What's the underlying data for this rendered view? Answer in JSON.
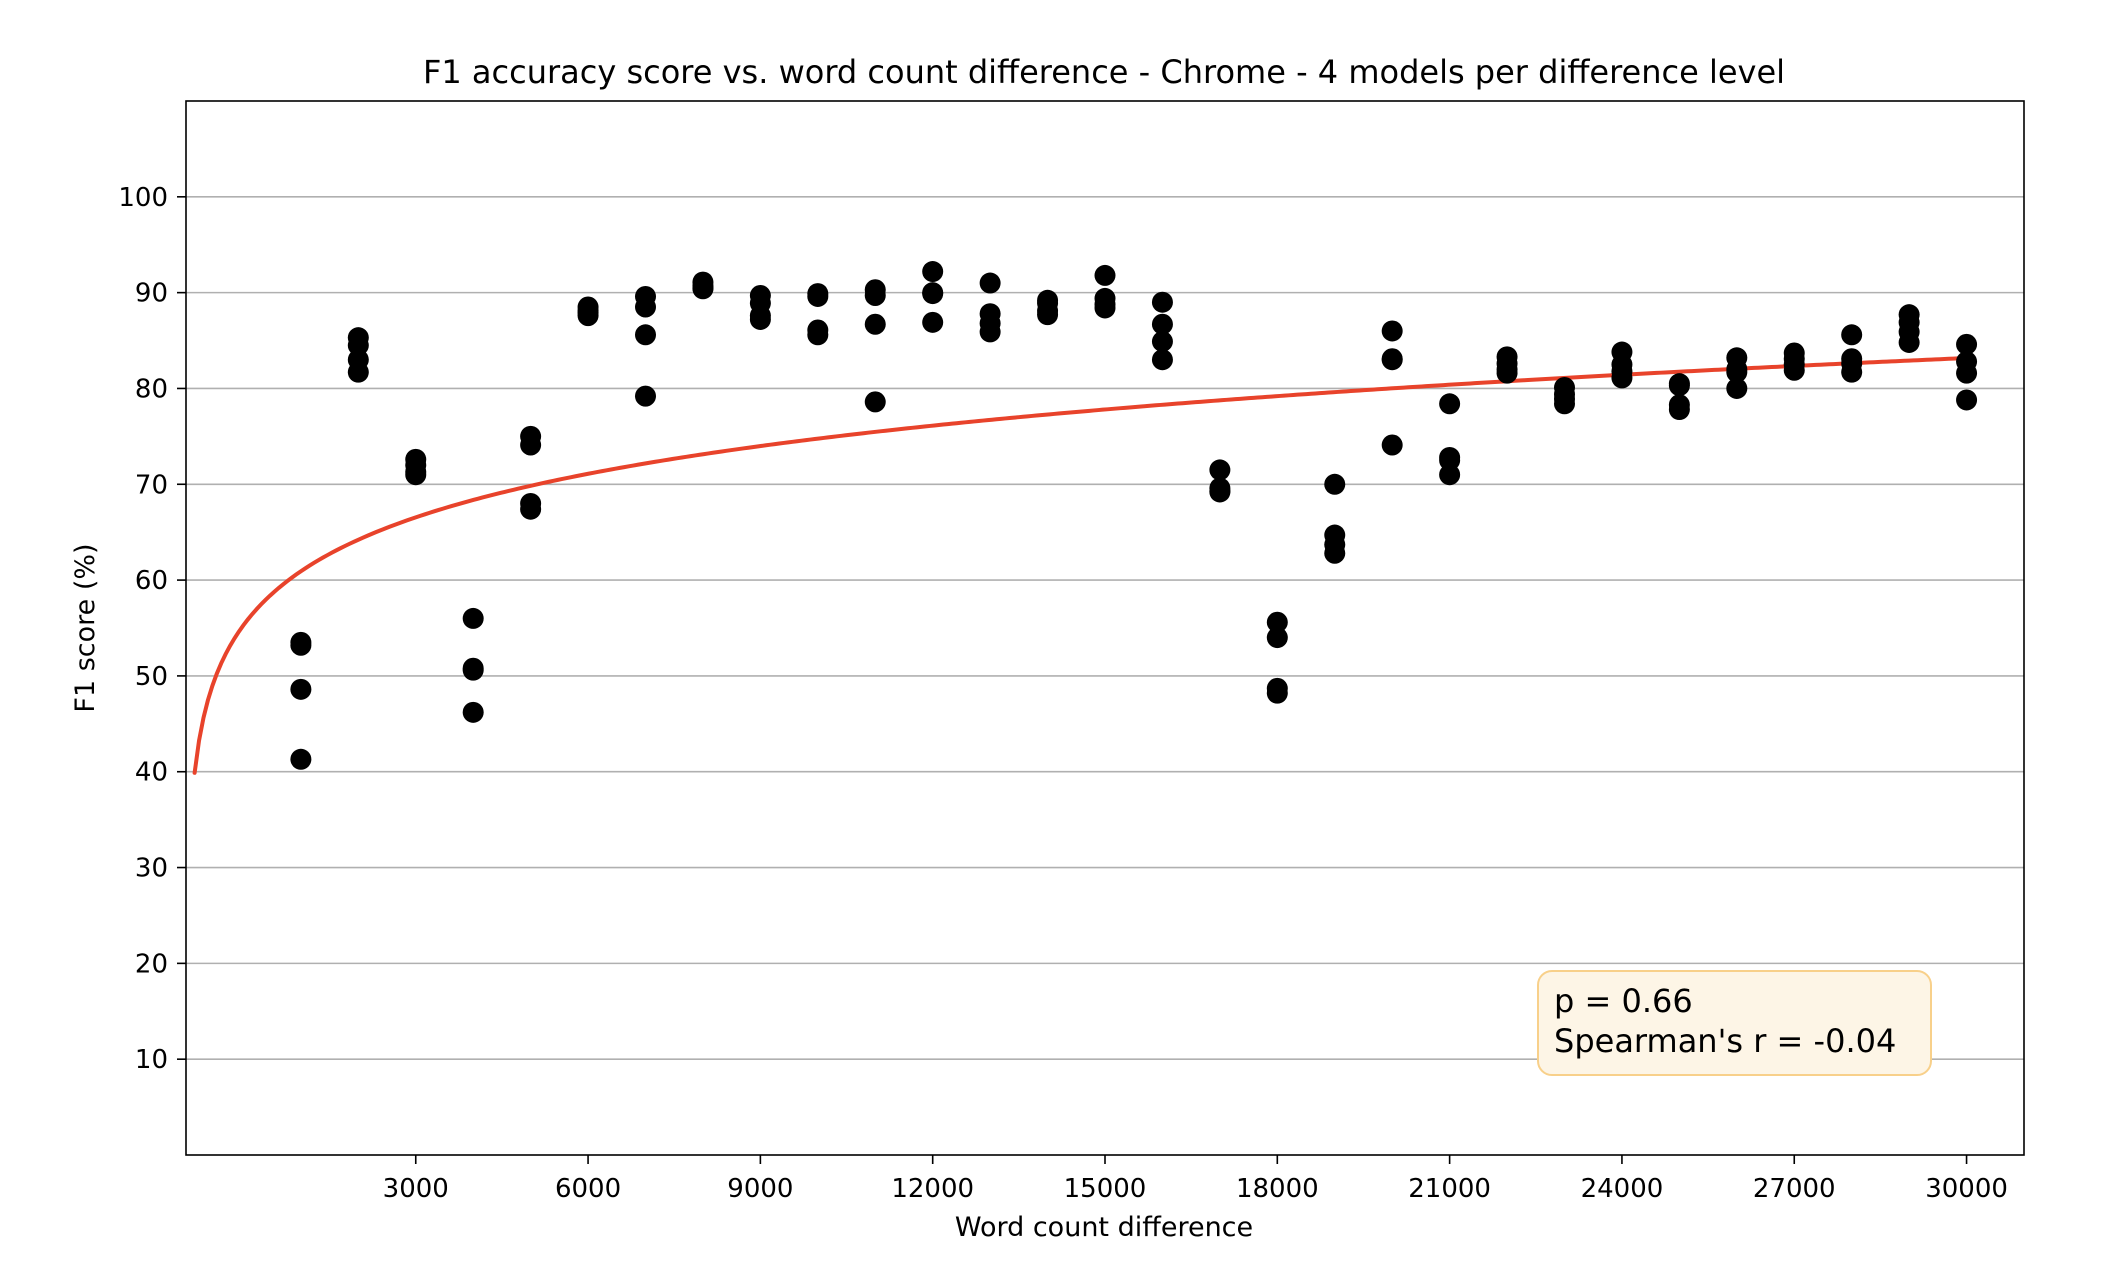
{
  "chart_data": {
    "type": "scatter",
    "title": "F1 accuracy score vs. word count difference - Chrome - 4 models per difference level",
    "xlabel": "Word count difference",
    "ylabel": "F1 score (%)",
    "xlim": [
      -1000,
      31000
    ],
    "ylim": [
      0,
      110
    ],
    "x_ticks": [
      3000,
      6000,
      9000,
      12000,
      15000,
      18000,
      21000,
      24000,
      27000,
      30000
    ],
    "y_ticks": [
      10,
      20,
      30,
      40,
      50,
      60,
      70,
      80,
      90,
      100
    ],
    "grid": "horizontal",
    "point_color": "#000000",
    "trend_color": "#e8432b",
    "annotation": {
      "lines": [
        "p = 0.66",
        "Spearman's r = -0.04"
      ],
      "placement": "bottom-right",
      "bg_color": "#fdf5e6",
      "border_color": "#f8d08a"
    },
    "trend_line": {
      "type": "logarithmic",
      "x_start": -850,
      "x_end": 30000,
      "intercept": -0.8,
      "slope": 8.12
    },
    "points": [
      [
        1000,
        53.5
      ],
      [
        1000,
        53.2
      ],
      [
        1000,
        48.6
      ],
      [
        1000,
        41.3
      ],
      [
        2000,
        85.3
      ],
      [
        2000,
        84.5
      ],
      [
        2000,
        83.0
      ],
      [
        2000,
        81.7
      ],
      [
        3000,
        72.6
      ],
      [
        3000,
        72.0
      ],
      [
        3000,
        71.3
      ],
      [
        3000,
        71.0
      ],
      [
        4000,
        56.0
      ],
      [
        4000,
        50.8
      ],
      [
        4000,
        50.6
      ],
      [
        4000,
        46.2
      ],
      [
        5000,
        75.0
      ],
      [
        5000,
        74.1
      ],
      [
        5000,
        68.0
      ],
      [
        5000,
        67.4
      ],
      [
        6000,
        88.5
      ],
      [
        6000,
        88.1
      ],
      [
        6000,
        87.9
      ],
      [
        6000,
        87.6
      ],
      [
        7000,
        89.6
      ],
      [
        7000,
        88.5
      ],
      [
        7000,
        85.6
      ],
      [
        7000,
        79.2
      ],
      [
        8000,
        91.1
      ],
      [
        8000,
        90.7
      ],
      [
        8000,
        90.5
      ],
      [
        8000,
        90.4
      ],
      [
        9000,
        89.7
      ],
      [
        9000,
        88.9
      ],
      [
        9000,
        87.6
      ],
      [
        9000,
        87.2
      ],
      [
        10000,
        89.9
      ],
      [
        10000,
        89.6
      ],
      [
        10000,
        86.1
      ],
      [
        10000,
        85.6
      ],
      [
        11000,
        90.3
      ],
      [
        11000,
        89.7
      ],
      [
        11000,
        86.7
      ],
      [
        11000,
        78.6
      ],
      [
        12000,
        92.2
      ],
      [
        12000,
        90.0
      ],
      [
        12000,
        89.9
      ],
      [
        12000,
        86.9
      ],
      [
        13000,
        91.0
      ],
      [
        13000,
        87.8
      ],
      [
        13000,
        86.8
      ],
      [
        13000,
        85.9
      ],
      [
        14000,
        89.2
      ],
      [
        14000,
        88.9
      ],
      [
        14000,
        88.1
      ],
      [
        14000,
        87.7
      ],
      [
        15000,
        91.8
      ],
      [
        15000,
        89.4
      ],
      [
        15000,
        88.8
      ],
      [
        15000,
        88.4
      ],
      [
        16000,
        89.0
      ],
      [
        16000,
        86.7
      ],
      [
        16000,
        84.9
      ],
      [
        16000,
        83.0
      ],
      [
        17000,
        71.5
      ],
      [
        17000,
        69.6
      ],
      [
        17000,
        69.3
      ],
      [
        17000,
        69.2
      ],
      [
        18000,
        55.6
      ],
      [
        18000,
        54.0
      ],
      [
        18000,
        48.7
      ],
      [
        18000,
        48.2
      ],
      [
        19000,
        70.0
      ],
      [
        19000,
        64.7
      ],
      [
        19000,
        63.7
      ],
      [
        19000,
        62.8
      ],
      [
        20000,
        86.0
      ],
      [
        20000,
        83.1
      ],
      [
        20000,
        83.0
      ],
      [
        20000,
        74.1
      ],
      [
        21000,
        78.4
      ],
      [
        21000,
        72.8
      ],
      [
        21000,
        72.5
      ],
      [
        21000,
        71.0
      ],
      [
        22000,
        83.3
      ],
      [
        22000,
        82.6
      ],
      [
        22000,
        82.0
      ],
      [
        22000,
        81.6
      ],
      [
        23000,
        80.1
      ],
      [
        23000,
        79.4
      ],
      [
        23000,
        78.9
      ],
      [
        23000,
        78.4
      ],
      [
        24000,
        83.8
      ],
      [
        24000,
        82.5
      ],
      [
        24000,
        81.8
      ],
      [
        24000,
        81.1
      ],
      [
        25000,
        80.5
      ],
      [
        25000,
        80.3
      ],
      [
        25000,
        78.3
      ],
      [
        25000,
        77.8
      ],
      [
        26000,
        83.2
      ],
      [
        26000,
        82.0
      ],
      [
        26000,
        81.7
      ],
      [
        26000,
        80.0
      ],
      [
        27000,
        83.7
      ],
      [
        27000,
        83.1
      ],
      [
        27000,
        82.5
      ],
      [
        27000,
        81.9
      ],
      [
        28000,
        85.6
      ],
      [
        28000,
        83.1
      ],
      [
        28000,
        82.6
      ],
      [
        28000,
        81.7
      ],
      [
        29000,
        87.7
      ],
      [
        29000,
        86.9
      ],
      [
        29000,
        85.9
      ],
      [
        29000,
        84.8
      ],
      [
        30000,
        84.6
      ],
      [
        30000,
        82.8
      ],
      [
        30000,
        81.6
      ],
      [
        30000,
        78.8
      ]
    ]
  }
}
